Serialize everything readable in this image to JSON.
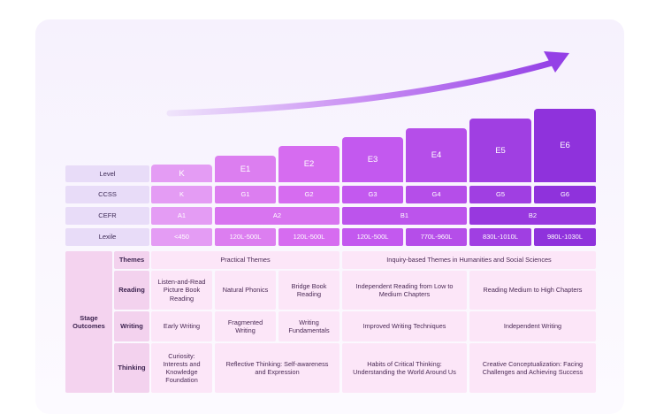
{
  "row_labels": {
    "level": "Level",
    "ccss": "CCSS",
    "cefr": "CEFR",
    "lexile": "Lexile"
  },
  "levels": [
    "K",
    "E1",
    "E2",
    "E3",
    "E4",
    "E5",
    "E6"
  ],
  "ccss": [
    "K",
    "G1",
    "G2",
    "G3",
    "G4",
    "G5",
    "G6"
  ],
  "cefr": [
    "A1",
    "A2",
    "B1",
    "B2"
  ],
  "lexile": [
    "<450",
    "120L-500L",
    "120L-500L",
    "120L-500L",
    "770L-960L",
    "830L-1010L",
    "980L-1030L"
  ],
  "outcomes": {
    "label": "Stage Outcomes",
    "themes": {
      "label": "Themes",
      "practical": "Practical Themes",
      "inquiry": "Inquiry-based Themes in Humanities and Social Sciences"
    },
    "reading": {
      "label": "Reading",
      "k": "Listen-and-Read Picture Book Reading",
      "e1": "Natural Phonics",
      "e2": "Bridge Book Reading",
      "e3e4": "Independent Reading from Low to Medium Chapters",
      "e5e6": "Reading Medium to High Chapters"
    },
    "writing": {
      "label": "Writing",
      "k": "Early Writing",
      "e1": "Fragmented Writing",
      "e2": "Writing Fundamentals",
      "e3e4": "Improved Writing Techniques",
      "e5e6": "Independent Writing"
    },
    "thinking": {
      "label": "Thinking",
      "k": "Curiosity: Interests and Knowledge Foundation",
      "e1e2": "Reflective Thinking: Self-awareness and Expression",
      "e3e4": "Habits of Critical Thinking: Understanding the World Around Us",
      "e5e6": "Creative Conceptualization: Facing Challenges and Achieving Success"
    }
  },
  "colors": {
    "k": "#e49cf4",
    "e1": "#dc7ef0",
    "e2": "#d66cf0",
    "e3": "#c359ef",
    "e4": "#b54ee9",
    "e5": "#a03fe2",
    "e6": "#8f32dc",
    "arrow": "#9440e6"
  }
}
